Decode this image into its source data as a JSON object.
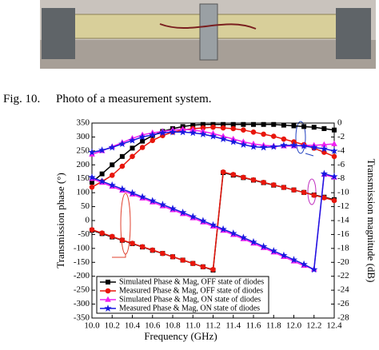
{
  "figure_caption": {
    "label": "Fig. 10.",
    "text": "Photo of a measurement system."
  },
  "chart_data": {
    "type": "line",
    "xlabel": "Frequency (GHz)",
    "ylabel": "Transmission phase (°)",
    "y2label": "Transmission magnitude (dB)",
    "x": [
      10.0,
      10.1,
      10.2,
      10.3,
      10.4,
      10.5,
      10.6,
      10.7,
      10.8,
      10.9,
      11.0,
      11.1,
      11.2,
      11.3,
      11.4,
      11.5,
      11.6,
      11.7,
      11.8,
      11.9,
      12.0,
      12.1,
      12.2,
      12.3,
      12.4
    ],
    "xlim": [
      10.0,
      12.4
    ],
    "xticks": [
      {
        "value": 10.0,
        "label": "10.0"
      },
      10.2,
      10.4,
      10.6,
      10.8,
      {
        "value": 11.0,
        "label": "11.0"
      },
      11.2,
      11.4,
      11.6,
      11.8,
      {
        "value": 12.0,
        "label": "12.0"
      },
      12.2,
      12.4
    ],
    "ylim": [
      -350,
      350
    ],
    "yticks": [
      -350,
      -300,
      -250,
      -200,
      -150,
      -100,
      -50,
      0,
      50,
      100,
      150,
      200,
      250,
      300,
      350
    ],
    "y2lim": [
      -28,
      0
    ],
    "y2ticks": [
      -28,
      -26,
      -24,
      -22,
      -20,
      -18,
      -16,
      -14,
      -12,
      -10,
      -8,
      -6,
      -4,
      -2,
      0
    ],
    "legend": "lower left",
    "series": [
      {
        "name": "Simulated Phase & Mag, OFF state of diodes",
        "color": "#000000",
        "marker": "square",
        "values": [
          -35,
          -47,
          -59,
          -71,
          -83,
          -95,
          -107,
          -118,
          -130,
          -142,
          -154,
          -166,
          -178,
          172,
          163,
          154,
          145,
          136,
          127,
          119,
          110,
          101,
          92,
          84,
          75
        ],
        "y2_values": [
          -8.5,
          -7.3,
          -6.0,
          -4.8,
          -3.6,
          -2.6,
          -1.8,
          -1.2,
          -0.8,
          -0.5,
          -0.3,
          -0.2,
          -0.2,
          -0.2,
          -0.2,
          -0.2,
          -0.2,
          -0.2,
          -0.2,
          -0.3,
          -0.4,
          -0.5,
          -0.6,
          -0.8,
          -1.0
        ]
      },
      {
        "name": "Measured Phase & Mag, OFF state of diodes",
        "color": "#e8160c",
        "marker": "circle",
        "values": [
          -33,
          -45,
          -57,
          -70,
          -82,
          -94,
          -106,
          -118,
          -130,
          -142,
          -154,
          -166,
          -176,
          174,
          165,
          155,
          146,
          137,
          128,
          119,
          110,
          101,
          91,
          82,
          72
        ],
        "y2_values": [
          -9.2,
          -8.4,
          -7.5,
          -6.2,
          -4.8,
          -3.5,
          -2.5,
          -1.8,
          -1.3,
          -1.0,
          -0.8,
          -0.7,
          -0.6,
          -0.7,
          -0.8,
          -1.0,
          -1.3,
          -1.6,
          -1.9,
          -2.3,
          -2.7,
          -3.1,
          -3.6,
          -4.2,
          -4.8
        ]
      },
      {
        "name": "Simulated Phase & Mag, ON state of diodes",
        "color": "#f020f0",
        "marker": "triangle",
        "values": [
          150,
          136,
          122,
          108,
          94,
          80,
          66,
          52,
          38,
          24,
          9,
          -6,
          -21,
          -36,
          -51,
          -66,
          -82,
          -98,
          -114,
          -130,
          -146,
          -162,
          -175,
          165,
          155
        ],
        "y2_values": [
          -4.5,
          -4.0,
          -3.4,
          -2.8,
          -2.2,
          -1.7,
          -1.4,
          -1.2,
          -1.0,
          -0.9,
          -1.0,
          -1.2,
          -1.5,
          -1.9,
          -2.3,
          -2.7,
          -3.0,
          -3.2,
          -3.3,
          -3.3,
          -3.3,
          -3.2,
          -3.2,
          -3.1,
          -3.0
        ]
      },
      {
        "name": "Measured Phase & Mag, ON state of diodes",
        "color": "#1818e0",
        "marker": "star",
        "values": [
          155,
          141,
          127,
          113,
          99,
          85,
          71,
          57,
          43,
          29,
          14,
          -1,
          -16,
          -31,
          -46,
          -61,
          -77,
          -93,
          -109,
          -125,
          -141,
          -157,
          -176,
          168,
          158
        ],
        "y2_values": [
          -4.2,
          -3.9,
          -3.5,
          -3.0,
          -2.5,
          -2.0,
          -1.7,
          -1.4,
          -1.3,
          -1.3,
          -1.4,
          -1.6,
          -1.9,
          -2.3,
          -2.7,
          -3.1,
          -3.4,
          -3.5,
          -3.4,
          -3.2,
          -3.2,
          -3.3,
          -3.5,
          -3.7,
          -4.0
        ]
      }
    ]
  }
}
